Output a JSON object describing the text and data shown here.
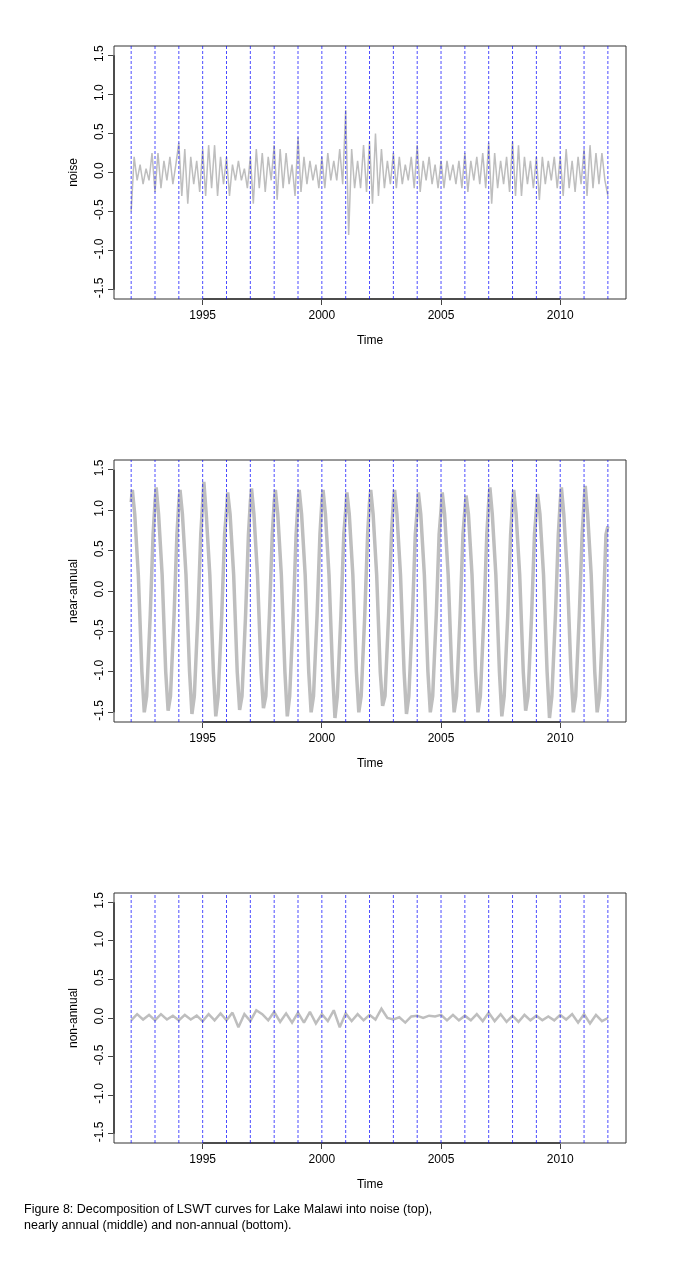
{
  "chart_data": [
    {
      "type": "line",
      "xlabel": "Time",
      "ylabel": "noise",
      "xlim": [
        1991.28,
        2012.76
      ],
      "ylim": [
        -1.62,
        1.62
      ],
      "xticks": [
        1995,
        2000,
        2005,
        2010
      ],
      "yticks": [
        -1.5,
        {
          "value": -1,
          "label": "-1.0"
        },
        -0.5,
        {
          "value": 0,
          "label": "0.0"
        },
        0.5,
        {
          "value": 1,
          "label": "1.0"
        },
        1.5
      ],
      "marker": "none",
      "line_style": "solid",
      "ref_lines": [
        {
          "axis": "x",
          "value": 1992,
          "color": "#0000ff",
          "line_style": "dashed"
        },
        {
          "axis": "x",
          "value": 1993,
          "color": "#0000ff",
          "line_style": "dashed"
        },
        {
          "axis": "x",
          "value": 1994,
          "color": "#0000ff",
          "line_style": "dashed"
        },
        {
          "axis": "x",
          "value": 1995,
          "color": "#0000ff",
          "line_style": "dashed"
        },
        {
          "axis": "x",
          "value": 1996,
          "color": "#0000ff",
          "line_style": "dashed"
        },
        {
          "axis": "x",
          "value": 1997,
          "color": "#0000ff",
          "line_style": "dashed"
        },
        {
          "axis": "x",
          "value": 1998,
          "color": "#0000ff",
          "line_style": "dashed"
        },
        {
          "axis": "x",
          "value": 1999,
          "color": "#0000ff",
          "line_style": "dashed"
        },
        {
          "axis": "x",
          "value": 2000,
          "color": "#0000ff",
          "line_style": "dashed"
        },
        {
          "axis": "x",
          "value": 2001,
          "color": "#0000ff",
          "line_style": "dashed"
        },
        {
          "axis": "x",
          "value": 2002,
          "color": "#0000ff",
          "line_style": "dashed"
        },
        {
          "axis": "x",
          "value": 2003,
          "color": "#0000ff",
          "line_style": "dashed"
        },
        {
          "axis": "x",
          "value": 2004,
          "color": "#0000ff",
          "line_style": "dashed"
        },
        {
          "axis": "x",
          "value": 2005,
          "color": "#0000ff",
          "line_style": "dashed"
        },
        {
          "axis": "x",
          "value": 2006,
          "color": "#0000ff",
          "line_style": "dashed"
        },
        {
          "axis": "x",
          "value": 2007,
          "color": "#0000ff",
          "line_style": "dashed"
        },
        {
          "axis": "x",
          "value": 2008,
          "color": "#0000ff",
          "line_style": "dashed"
        },
        {
          "axis": "x",
          "value": 2009,
          "color": "#0000ff",
          "line_style": "dashed"
        },
        {
          "axis": "x",
          "value": 2010,
          "color": "#0000ff",
          "line_style": "dashed"
        },
        {
          "axis": "x",
          "value": 2011,
          "color": "#0000ff",
          "line_style": "dashed"
        },
        {
          "axis": "x",
          "value": 2012,
          "color": "#0000ff",
          "line_style": "dashed"
        }
      ],
      "series": [
        {
          "color": "#bebebe",
          "x": [
            1992.0,
            1992.125,
            1992.25,
            1992.375,
            1992.5,
            1992.625,
            1992.75,
            1992.875,
            1993.0,
            1993.125,
            1993.25,
            1993.375,
            1993.5,
            1993.625,
            1993.75,
            1993.875,
            1994.0,
            1994.125,
            1994.25,
            1994.375,
            1994.5,
            1994.625,
            1994.75,
            1994.875,
            1995.0,
            1995.125,
            1995.25,
            1995.375,
            1995.5,
            1995.625,
            1995.75,
            1995.875,
            1996.0,
            1996.125,
            1996.25,
            1996.375,
            1996.5,
            1996.625,
            1996.75,
            1996.875,
            1997.0,
            1997.125,
            1997.25,
            1997.375,
            1997.5,
            1997.625,
            1997.75,
            1997.875,
            1998.0,
            1998.125,
            1998.25,
            1998.375,
            1998.5,
            1998.625,
            1998.75,
            1998.875,
            1999.0,
            1999.125,
            1999.25,
            1999.375,
            1999.5,
            1999.625,
            1999.75,
            1999.875,
            2000.0,
            2000.125,
            2000.25,
            2000.375,
            2000.5,
            2000.625,
            2000.75,
            2000.875,
            2001.0,
            2001.125,
            2001.25,
            2001.375,
            2001.5,
            2001.625,
            2001.75,
            2001.875,
            2002.0,
            2002.125,
            2002.25,
            2002.375,
            2002.5,
            2002.625,
            2002.75,
            2002.875,
            2003.0,
            2003.125,
            2003.25,
            2003.375,
            2003.5,
            2003.625,
            2003.75,
            2003.875,
            2004.0,
            2004.125,
            2004.25,
            2004.375,
            2004.5,
            2004.625,
            2004.75,
            2004.875,
            2005.0,
            2005.125,
            2005.25,
            2005.375,
            2005.5,
            2005.625,
            2005.75,
            2005.875,
            2006.0,
            2006.125,
            2006.25,
            2006.375,
            2006.5,
            2006.625,
            2006.75,
            2006.875,
            2007.0,
            2007.125,
            2007.25,
            2007.375,
            2007.5,
            2007.625,
            2007.75,
            2007.875,
            2008.0,
            2008.125,
            2008.25,
            2008.375,
            2008.5,
            2008.625,
            2008.75,
            2008.875,
            2009.0,
            2009.125,
            2009.25,
            2009.375,
            2009.5,
            2009.625,
            2009.75,
            2009.875,
            2010.0,
            2010.125,
            2010.25,
            2010.375,
            2010.5,
            2010.625,
            2010.75,
            2010.875,
            2011.0,
            2011.125,
            2011.25,
            2011.375,
            2011.5,
            2011.625,
            2011.75,
            2011.875,
            2012.0
          ],
          "values": [
            -0.5,
            0.2,
            -0.1,
            0.1,
            -0.15,
            0.05,
            -0.1,
            0.25,
            -0.25,
            0.25,
            -0.2,
            0.15,
            -0.1,
            0.2,
            -0.15,
            0.1,
            0.38,
            -0.3,
            0.3,
            -0.4,
            0.2,
            -0.15,
            0.15,
            -0.25,
            0.3,
            -0.3,
            0.35,
            -0.2,
            0.35,
            -0.3,
            0.2,
            -0.15,
            0.2,
            -0.3,
            0.1,
            -0.1,
            0.15,
            -0.1,
            0.05,
            -0.2,
            0.2,
            -0.4,
            0.3,
            -0.2,
            0.25,
            -0.25,
            0.2,
            -0.1,
            0.35,
            -0.35,
            0.3,
            -0.2,
            0.25,
            -0.15,
            0.1,
            -0.3,
            0.45,
            -0.25,
            0.2,
            -0.15,
            0.15,
            -0.1,
            0.1,
            -0.2,
            0.2,
            -0.2,
            0.25,
            -0.1,
            0.15,
            -0.1,
            0.3,
            -0.15,
            0.8,
            -0.8,
            0.3,
            -0.2,
            0.15,
            -0.2,
            0.35,
            -0.25,
            0.4,
            -0.4,
            0.5,
            -0.3,
            0.3,
            -0.2,
            0.15,
            -0.15,
            0.25,
            -0.2,
            0.2,
            -0.15,
            0.1,
            -0.1,
            0.2,
            -0.2,
            0.35,
            -0.25,
            0.15,
            -0.1,
            0.2,
            -0.15,
            0.1,
            -0.2,
            0.15,
            -0.2,
            0.15,
            -0.1,
            0.1,
            -0.15,
            0.15,
            -0.2,
            0.25,
            -0.25,
            0.15,
            -0.1,
            0.2,
            -0.15,
            0.25,
            -0.2,
            0.38,
            -0.4,
            0.25,
            -0.2,
            0.15,
            -0.15,
            0.2,
            -0.25,
            0.4,
            -0.3,
            0.35,
            -0.3,
            0.2,
            -0.15,
            0.15,
            -0.2,
            0.2,
            -0.35,
            0.2,
            -0.15,
            0.15,
            -0.1,
            0.2,
            -0.2,
            0.2,
            -0.3,
            0.3,
            -0.2,
            0.15,
            -0.25,
            0.2,
            -0.15,
            0.3,
            -0.3,
            0.35,
            -0.2,
            0.25,
            -0.15,
            0.25,
            -0.1,
            -0.3
          ]
        }
      ]
    },
    {
      "type": "line",
      "xlabel": "Time",
      "ylabel": "near-annual",
      "xlim": [
        1991.28,
        2012.76
      ],
      "ylim": [
        -1.62,
        1.62
      ],
      "xticks": [
        1995,
        2000,
        2005,
        2010
      ],
      "yticks": [
        -1.5,
        {
          "value": -1,
          "label": "-1.0"
        },
        -0.5,
        {
          "value": 0,
          "label": "0.0"
        },
        0.5,
        {
          "value": 1,
          "label": "1.0"
        },
        1.5
      ],
      "marker": "none",
      "line_style": "solid",
      "ref_lines": [
        {
          "axis": "x",
          "value": 1992,
          "color": "#0000ff",
          "line_style": "dashed"
        },
        {
          "axis": "x",
          "value": 1993,
          "color": "#0000ff",
          "line_style": "dashed"
        },
        {
          "axis": "x",
          "value": 1994,
          "color": "#0000ff",
          "line_style": "dashed"
        },
        {
          "axis": "x",
          "value": 1995,
          "color": "#0000ff",
          "line_style": "dashed"
        },
        {
          "axis": "x",
          "value": 1996,
          "color": "#0000ff",
          "line_style": "dashed"
        },
        {
          "axis": "x",
          "value": 1997,
          "color": "#0000ff",
          "line_style": "dashed"
        },
        {
          "axis": "x",
          "value": 1998,
          "color": "#0000ff",
          "line_style": "dashed"
        },
        {
          "axis": "x",
          "value": 1999,
          "color": "#0000ff",
          "line_style": "dashed"
        },
        {
          "axis": "x",
          "value": 2000,
          "color": "#0000ff",
          "line_style": "dashed"
        },
        {
          "axis": "x",
          "value": 2001,
          "color": "#0000ff",
          "line_style": "dashed"
        },
        {
          "axis": "x",
          "value": 2002,
          "color": "#0000ff",
          "line_style": "dashed"
        },
        {
          "axis": "x",
          "value": 2003,
          "color": "#0000ff",
          "line_style": "dashed"
        },
        {
          "axis": "x",
          "value": 2004,
          "color": "#0000ff",
          "line_style": "dashed"
        },
        {
          "axis": "x",
          "value": 2005,
          "color": "#0000ff",
          "line_style": "dashed"
        },
        {
          "axis": "x",
          "value": 2006,
          "color": "#0000ff",
          "line_style": "dashed"
        },
        {
          "axis": "x",
          "value": 2007,
          "color": "#0000ff",
          "line_style": "dashed"
        },
        {
          "axis": "x",
          "value": 2008,
          "color": "#0000ff",
          "line_style": "dashed"
        },
        {
          "axis": "x",
          "value": 2009,
          "color": "#0000ff",
          "line_style": "dashed"
        },
        {
          "axis": "x",
          "value": 2010,
          "color": "#0000ff",
          "line_style": "dashed"
        },
        {
          "axis": "x",
          "value": 2011,
          "color": "#0000ff",
          "line_style": "dashed"
        },
        {
          "axis": "x",
          "value": 2012,
          "color": "#0000ff",
          "line_style": "dashed"
        }
      ],
      "series": [
        {
          "color": "#bebebe",
          "x": [
            1992.0,
            1992.05,
            1992.15,
            1992.3,
            1992.45,
            1992.55,
            1992.65,
            1992.8,
            1992.92,
            1993.0,
            1993.05,
            1993.15,
            1993.3,
            1993.45,
            1993.55,
            1993.65,
            1993.8,
            1993.92,
            1994.0,
            1994.05,
            1994.15,
            1994.3,
            1994.45,
            1994.55,
            1994.65,
            1994.8,
            1994.92,
            1995.0,
            1995.05,
            1995.15,
            1995.3,
            1995.45,
            1995.55,
            1995.65,
            1995.8,
            1995.92,
            1996.0,
            1996.05,
            1996.15,
            1996.3,
            1996.45,
            1996.55,
            1996.65,
            1996.8,
            1996.92,
            1997.0,
            1997.05,
            1997.15,
            1997.3,
            1997.45,
            1997.55,
            1997.65,
            1997.8,
            1997.92,
            1998.0,
            1998.05,
            1998.15,
            1998.3,
            1998.45,
            1998.55,
            1998.65,
            1998.8,
            1998.92,
            1999.0,
            1999.05,
            1999.15,
            1999.3,
            1999.45,
            1999.55,
            1999.65,
            1999.8,
            1999.92,
            2000.0,
            2000.05,
            2000.15,
            2000.3,
            2000.45,
            2000.55,
            2000.65,
            2000.8,
            2000.92,
            2001.0,
            2001.05,
            2001.15,
            2001.3,
            2001.45,
            2001.55,
            2001.65,
            2001.8,
            2001.92,
            2002.0,
            2002.05,
            2002.15,
            2002.3,
            2002.45,
            2002.55,
            2002.65,
            2002.8,
            2002.92,
            2003.0,
            2003.05,
            2003.15,
            2003.3,
            2003.45,
            2003.55,
            2003.65,
            2003.8,
            2003.92,
            2004.0,
            2004.05,
            2004.15,
            2004.3,
            2004.45,
            2004.55,
            2004.65,
            2004.8,
            2004.92,
            2005.0,
            2005.05,
            2005.15,
            2005.3,
            2005.45,
            2005.55,
            2005.65,
            2005.8,
            2005.92,
            2006.0,
            2006.05,
            2006.15,
            2006.3,
            2006.45,
            2006.55,
            2006.65,
            2006.8,
            2006.92,
            2007.0,
            2007.05,
            2007.15,
            2007.3,
            2007.45,
            2007.55,
            2007.65,
            2007.8,
            2007.92,
            2008.0,
            2008.05,
            2008.15,
            2008.3,
            2008.45,
            2008.55,
            2008.65,
            2008.8,
            2008.92,
            2009.0,
            2009.05,
            2009.15,
            2009.3,
            2009.45,
            2009.55,
            2009.65,
            2009.8,
            2009.92,
            2010.0,
            2010.05,
            2010.15,
            2010.3,
            2010.45,
            2010.55,
            2010.65,
            2010.8,
            2010.92,
            2011.0,
            2011.05,
            2011.15,
            2011.3,
            2011.45,
            2011.55,
            2011.65,
            2011.8,
            2011.92,
            2012.0
          ],
          "values": [
            1.1,
            1.25,
            0.95,
            0.2,
            -1.0,
            -1.5,
            -1.3,
            -0.3,
            0.7,
            1.1,
            1.28,
            0.95,
            0.2,
            -1.0,
            -1.48,
            -1.3,
            -0.3,
            0.7,
            1.1,
            1.25,
            0.95,
            0.2,
            -1.0,
            -1.52,
            -1.3,
            -0.3,
            0.7,
            1.1,
            1.35,
            0.95,
            0.2,
            -1.0,
            -1.55,
            -1.3,
            -0.3,
            0.7,
            1.0,
            1.22,
            0.95,
            0.2,
            -1.0,
            -1.47,
            -1.3,
            -0.3,
            0.7,
            1.1,
            1.27,
            0.95,
            0.2,
            -1.0,
            -1.45,
            -1.3,
            -0.3,
            0.7,
            1.1,
            1.25,
            0.95,
            0.2,
            -1.0,
            -1.55,
            -1.3,
            -0.3,
            0.7,
            1.1,
            1.25,
            0.95,
            0.2,
            -1.0,
            -1.5,
            -1.3,
            -0.3,
            0.7,
            1.1,
            1.25,
            0.95,
            0.2,
            -1.0,
            -1.57,
            -1.3,
            -0.3,
            0.7,
            1.0,
            1.22,
            0.95,
            0.2,
            -1.0,
            -1.5,
            -1.3,
            -0.3,
            0.7,
            1.1,
            1.25,
            0.95,
            0.2,
            -1.0,
            -1.42,
            -1.3,
            -0.3,
            0.7,
            1.1,
            1.25,
            0.95,
            0.2,
            -1.0,
            -1.52,
            -1.3,
            -0.3,
            0.7,
            1.0,
            1.22,
            0.95,
            0.2,
            -1.0,
            -1.5,
            -1.3,
            -0.3,
            0.7,
            1.0,
            1.22,
            0.95,
            0.2,
            -1.0,
            -1.5,
            -1.3,
            -0.3,
            0.7,
            1.0,
            1.18,
            0.95,
            0.2,
            -1.0,
            -1.5,
            -1.3,
            -0.3,
            0.7,
            1.1,
            1.28,
            0.95,
            0.2,
            -1.0,
            -1.55,
            -1.3,
            -0.3,
            0.7,
            1.1,
            1.25,
            0.95,
            0.2,
            -1.0,
            -1.48,
            -1.3,
            -0.3,
            0.7,
            1.0,
            1.2,
            0.95,
            0.2,
            -1.0,
            -1.57,
            -1.3,
            -0.3,
            0.7,
            1.1,
            1.28,
            0.95,
            0.2,
            -1.0,
            -1.5,
            -1.3,
            -0.3,
            0.7,
            1.1,
            1.3,
            0.95,
            0.2,
            -1.0,
            -1.5,
            -1.3,
            -0.3,
            0.7,
            0.8
          ]
        }
      ]
    },
    {
      "type": "line",
      "xlabel": "Time",
      "ylabel": "non-annual",
      "xlim": [
        1991.28,
        2012.76
      ],
      "ylim": [
        -1.62,
        1.62
      ],
      "xticks": [
        1995,
        2000,
        2005,
        2010
      ],
      "yticks": [
        -1.5,
        {
          "value": -1,
          "label": "-1.0"
        },
        -0.5,
        {
          "value": 0,
          "label": "0.0"
        },
        0.5,
        {
          "value": 1,
          "label": "1.0"
        },
        1.5
      ],
      "marker": "none",
      "line_style": "solid",
      "annotations": [
        "Figure 8: Decomposition of LSWT curves for Lake Malawi into noise (top), nearly annual (middle) and non-annual (bottom)."
      ],
      "ref_lines": [
        {
          "axis": "x",
          "value": 1992,
          "color": "#0000ff",
          "line_style": "dashed"
        },
        {
          "axis": "x",
          "value": 1993,
          "color": "#0000ff",
          "line_style": "dashed"
        },
        {
          "axis": "x",
          "value": 1994,
          "color": "#0000ff",
          "line_style": "dashed"
        },
        {
          "axis": "x",
          "value": 1995,
          "color": "#0000ff",
          "line_style": "dashed"
        },
        {
          "axis": "x",
          "value": 1996,
          "color": "#0000ff",
          "line_style": "dashed"
        },
        {
          "axis": "x",
          "value": 1997,
          "color": "#0000ff",
          "line_style": "dashed"
        },
        {
          "axis": "x",
          "value": 1998,
          "color": "#0000ff",
          "line_style": "dashed"
        },
        {
          "axis": "x",
          "value": 1999,
          "color": "#0000ff",
          "line_style": "dashed"
        },
        {
          "axis": "x",
          "value": 2000,
          "color": "#0000ff",
          "line_style": "dashed"
        },
        {
          "axis": "x",
          "value": 2001,
          "color": "#0000ff",
          "line_style": "dashed"
        },
        {
          "axis": "x",
          "value": 2002,
          "color": "#0000ff",
          "line_style": "dashed"
        },
        {
          "axis": "x",
          "value": 2003,
          "color": "#0000ff",
          "line_style": "dashed"
        },
        {
          "axis": "x",
          "value": 2004,
          "color": "#0000ff",
          "line_style": "dashed"
        },
        {
          "axis": "x",
          "value": 2005,
          "color": "#0000ff",
          "line_style": "dashed"
        },
        {
          "axis": "x",
          "value": 2006,
          "color": "#0000ff",
          "line_style": "dashed"
        },
        {
          "axis": "x",
          "value": 2007,
          "color": "#0000ff",
          "line_style": "dashed"
        },
        {
          "axis": "x",
          "value": 2008,
          "color": "#0000ff",
          "line_style": "dashed"
        },
        {
          "axis": "x",
          "value": 2009,
          "color": "#0000ff",
          "line_style": "dashed"
        },
        {
          "axis": "x",
          "value": 2010,
          "color": "#0000ff",
          "line_style": "dashed"
        },
        {
          "axis": "x",
          "value": 2011,
          "color": "#0000ff",
          "line_style": "dashed"
        },
        {
          "axis": "x",
          "value": 2012,
          "color": "#0000ff",
          "line_style": "dashed"
        }
      ],
      "series": [
        {
          "color": "#bebebe",
          "x": [
            1992.0,
            1992.25,
            1992.5,
            1992.75,
            1993.0,
            1993.25,
            1993.5,
            1993.75,
            1994.0,
            1994.25,
            1994.5,
            1994.75,
            1995.0,
            1995.25,
            1995.5,
            1995.75,
            1996.0,
            1996.25,
            1996.5,
            1996.75,
            1997.0,
            1997.25,
            1997.5,
            1997.75,
            1998.0,
            1998.25,
            1998.5,
            1998.75,
            1999.0,
            1999.25,
            1999.5,
            1999.75,
            2000.0,
            2000.25,
            2000.5,
            2000.75,
            2001.0,
            2001.25,
            2001.5,
            2001.75,
            2002.0,
            2002.25,
            2002.5,
            2002.75,
            2003.0,
            2003.25,
            2003.5,
            2003.75,
            2004.0,
            2004.25,
            2004.5,
            2004.75,
            2005.0,
            2005.25,
            2005.5,
            2005.75,
            2006.0,
            2006.25,
            2006.5,
            2006.75,
            2007.0,
            2007.25,
            2007.5,
            2007.75,
            2008.0,
            2008.25,
            2008.5,
            2008.75,
            2009.0,
            2009.25,
            2009.5,
            2009.75,
            2010.0,
            2010.25,
            2010.5,
            2010.75,
            2011.0,
            2011.25,
            2011.5,
            2011.75,
            2012.0
          ],
          "values": [
            -0.03,
            0.05,
            -0.02,
            0.04,
            -0.03,
            0.05,
            -0.02,
            0.03,
            -0.03,
            0.04,
            -0.02,
            0.03,
            -0.04,
            0.05,
            -0.03,
            0.06,
            -0.03,
            0.07,
            -0.12,
            0.05,
            -0.04,
            0.1,
            0.05,
            -0.03,
            0.08,
            -0.05,
            0.06,
            -0.06,
            0.07,
            -0.06,
            0.08,
            -0.07,
            0.05,
            -0.04,
            0.1,
            -0.12,
            0.06,
            -0.04,
            0.05,
            -0.03,
            0.04,
            -0.02,
            0.12,
            0.0,
            -0.02,
            0.01,
            -0.06,
            0.02,
            0.03,
            0.0,
            0.03,
            0.02,
            0.04,
            -0.03,
            0.04,
            -0.03,
            0.03,
            -0.03,
            0.05,
            -0.04,
            0.07,
            -0.04,
            0.05,
            -0.05,
            0.03,
            -0.05,
            0.04,
            -0.03,
            0.03,
            -0.03,
            0.02,
            -0.03,
            0.04,
            -0.02,
            0.05,
            -0.06,
            0.05,
            -0.07,
            0.04,
            -0.04,
            0.0
          ]
        }
      ]
    }
  ]
}
